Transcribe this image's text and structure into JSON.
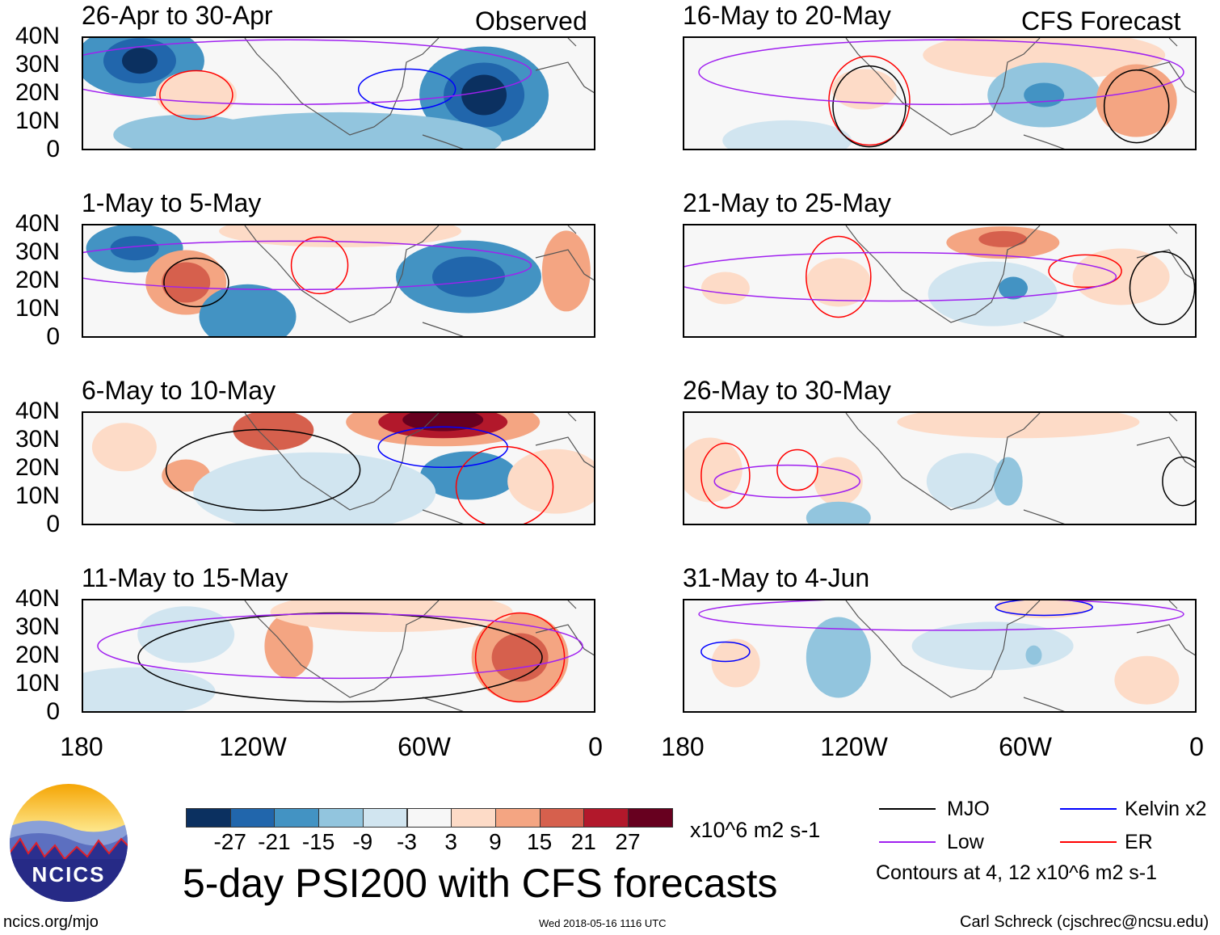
{
  "header": {
    "left_label": "Observed",
    "right_label": "CFS Forecast"
  },
  "panels": [
    {
      "title": "26-Apr to 30-Apr",
      "group": "observed"
    },
    {
      "title": "1-May to 5-May",
      "group": "observed"
    },
    {
      "title": "6-May to 10-May",
      "group": "observed"
    },
    {
      "title": "11-May to 15-May",
      "group": "observed"
    },
    {
      "title": "16-May to 20-May",
      "group": "forecast"
    },
    {
      "title": "21-May to 25-May",
      "group": "forecast"
    },
    {
      "title": "26-May to 30-May",
      "group": "forecast"
    },
    {
      "title": "31-May to 4-Jun",
      "group": "forecast"
    }
  ],
  "lat_ticks": [
    "40N",
    "30N",
    "20N",
    "10N",
    "0"
  ],
  "lon_ticks": [
    "180",
    "120W",
    "60W",
    "0"
  ],
  "colorbar": {
    "labels": [
      "-27",
      "-21",
      "-15",
      "-9",
      "-3",
      "3",
      "9",
      "15",
      "21",
      "27"
    ],
    "colors": [
      "#0b3060",
      "#2166ac",
      "#4393c3",
      "#92c5de",
      "#d1e5f0",
      "#f7f7f7",
      "#fddbc7",
      "#f4a582",
      "#d6604d",
      "#b2182b",
      "#67001f"
    ],
    "units": "x10^6 m2 s-1"
  },
  "title": "5-day PSI200 with CFS forecasts",
  "legend": {
    "items": [
      {
        "label": "MJO",
        "color": "#000000"
      },
      {
        "label": "Kelvin x2",
        "color": "#0000ff"
      },
      {
        "label": "Low",
        "color": "#a020f0"
      },
      {
        "label": "ER",
        "color": "#ff0000"
      }
    ],
    "note": "Contours at 4, 12 x10^6 m2 s-1"
  },
  "logo": {
    "text": "NCICS"
  },
  "footer": {
    "url": "ncics.org/mjo",
    "timestamp": "Wed 2018-05-16 1116 UTC",
    "author": "Carl Schreck (cjschrec@ncsu.edu)"
  }
}
